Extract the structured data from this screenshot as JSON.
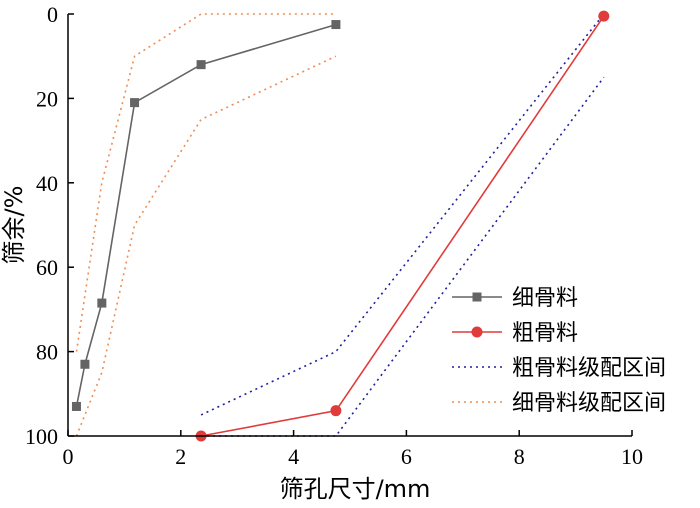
{
  "chart_data": {
    "type": "line",
    "xlabel": "筛孔尺寸/mm",
    "ylabel": "筛余/%",
    "xlim": [
      0,
      10
    ],
    "ylim": [
      0,
      100
    ],
    "y_inverted": true,
    "x_ticks": [
      "0",
      "2",
      "4",
      "6",
      "8",
      "10"
    ],
    "y_ticks": [
      "0",
      "20",
      "40",
      "60",
      "80",
      "100"
    ],
    "grid": false,
    "legend_position": "right",
    "series": [
      {
        "name": "细骨料",
        "color": "#646464",
        "style": "solid",
        "marker": "square",
        "x": [
          0.15,
          0.3,
          0.6,
          1.18,
          2.36,
          4.75
        ],
        "y": [
          93,
          83,
          68.5,
          21,
          12,
          2.5
        ]
      },
      {
        "name": "粗骨料",
        "color": "#e03c3c",
        "style": "solid",
        "marker": "circle",
        "x": [
          2.36,
          4.75,
          9.5
        ],
        "y": [
          100,
          94,
          0.5
        ]
      },
      {
        "name": "粗骨料级配区间",
        "color": "#1f1fa0",
        "style": "dotted",
        "marker": "none",
        "segments": [
          {
            "x": [
              2.36,
              4.75,
              9.5
            ],
            "y": [
              95,
              80,
              0
            ]
          },
          {
            "x": [
              2.36,
              4.75,
              9.5
            ],
            "y": [
              100,
              100,
              15
            ]
          }
        ]
      },
      {
        "name": "细骨料级配区间",
        "color": "#f08c50",
        "style": "dotted",
        "marker": "none",
        "segments": [
          {
            "x": [
              0.15,
              0.6,
              1.18,
              2.36,
              4.75
            ],
            "y": [
              80,
              40,
              10,
              0,
              0
            ]
          },
          {
            "x": [
              0.15,
              0.3,
              0.6,
              1.18,
              2.36,
              4.75
            ],
            "y": [
              100,
              95,
              85,
              50,
              25,
              10
            ]
          }
        ]
      }
    ]
  }
}
